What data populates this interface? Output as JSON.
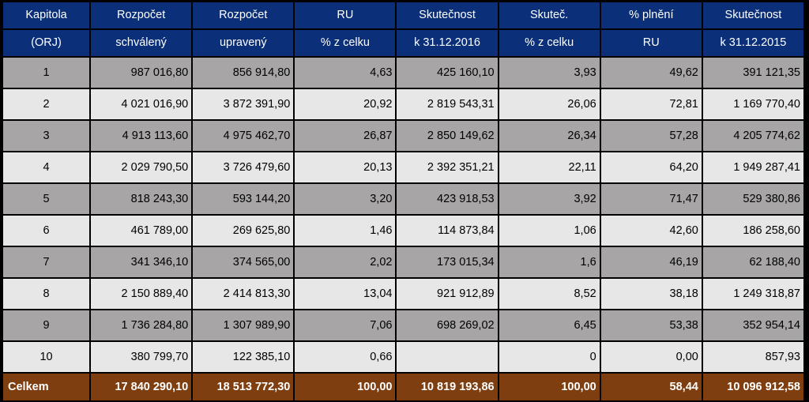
{
  "header": {
    "line1": [
      "Kapitola",
      "Rozpočet",
      "Rozpočet",
      "RU",
      "Skutečnost",
      "Skuteč.",
      "% plnění",
      "Skutečnost"
    ],
    "line2": [
      "(ORJ)",
      "schválený",
      "upravený",
      "% z celku",
      "k 31.12.2016",
      "% z celku",
      "RU",
      "k 31.12.2015"
    ]
  },
  "rows": [
    [
      "1",
      "987 016,80",
      "856 914,80",
      "4,63",
      "425 160,10",
      "3,93",
      "49,62",
      "391 121,35"
    ],
    [
      "2",
      "4 021 016,90",
      "3 872 391,90",
      "20,92",
      "2 819 543,31",
      "26,06",
      "72,81",
      "1 169 770,40"
    ],
    [
      "3",
      "4 913 113,60",
      "4 975 462,70",
      "26,87",
      "2 850 149,62",
      "26,34",
      "57,28",
      "4 205 774,62"
    ],
    [
      "4",
      "2 029 790,50",
      "3 726 479,60",
      "20,13",
      "2 392 351,21",
      "22,11",
      "64,20",
      "1 949 287,41"
    ],
    [
      "5",
      "818 243,30",
      "593 144,20",
      "3,20",
      "423 918,53",
      "3,92",
      "71,47",
      "529 380,86"
    ],
    [
      "6",
      "461 789,00",
      "269 625,80",
      "1,46",
      "114 873,84",
      "1,06",
      "42,60",
      "186 258,60"
    ],
    [
      "7",
      "341 346,10",
      "374 565,00",
      "2,02",
      "173 015,34",
      "1,6",
      "46,19",
      "62 188,40"
    ],
    [
      "8",
      "2 150 889,40",
      "2 414 813,30",
      "13,04",
      "921 912,89",
      "8,52",
      "38,18",
      "1 249 318,87"
    ],
    [
      "9",
      "1 736 284,80",
      "1 307 989,90",
      "7,06",
      "698 269,02",
      "6,45",
      "53,38",
      "352 954,14"
    ],
    [
      "10",
      "380 799,70",
      "122 385,10",
      "0,66",
      "",
      "0",
      "0,00",
      "857,93"
    ]
  ],
  "total": [
    "Celkem",
    "17 840 290,10",
    "18 513 772,30",
    "100,00",
    "10 819 193,86",
    "100,00",
    "58,44",
    "10 096 912,58"
  ],
  "colors": {
    "header_bg": "#0b2f78",
    "row_dark": "#a7a5a5",
    "row_light": "#e7e7e7",
    "total_bg": "#7e3e10",
    "background": "#000000"
  }
}
